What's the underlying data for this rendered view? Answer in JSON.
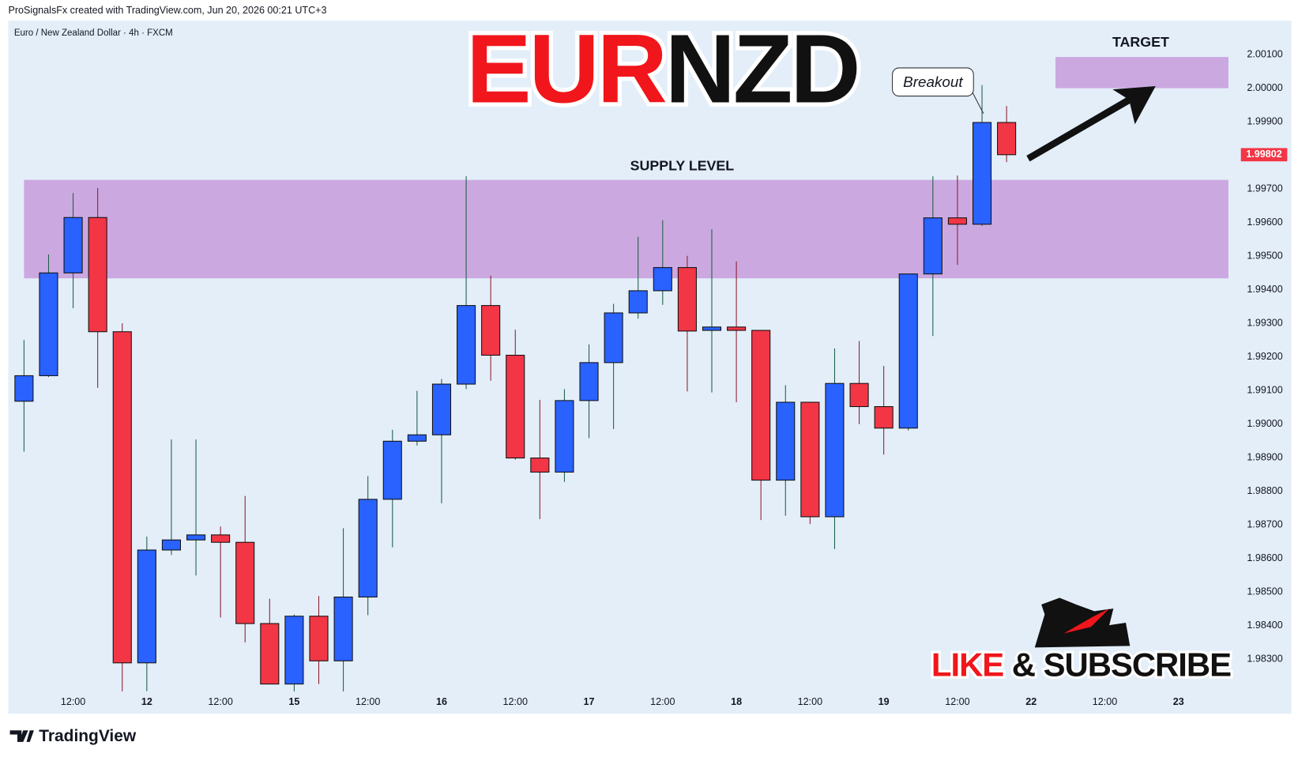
{
  "chart_data": {
    "type": "candlestick",
    "header": "ProSignalsFx created with TradingView.com, Jun 20, 2026 00:21 UTC+3",
    "symbol": "Euro / New Zealand Dollar · 4h · FXCM",
    "title_parts": [
      "EUR",
      "NZD"
    ],
    "title_colors": [
      "#f0161b",
      "#111111"
    ],
    "open": [
      1.99068,
      1.99144,
      1.9945,
      1.99615,
      1.99275,
      1.98289,
      1.98625,
      1.98655,
      1.9867,
      1.98648,
      1.98406,
      1.98226,
      1.98428,
      1.98295,
      1.98485,
      1.98776,
      1.98949,
      1.98968,
      1.99119,
      1.99353,
      1.99205,
      1.98899,
      1.98857,
      1.9907,
      1.99183,
      1.99331,
      1.99397,
      1.99466,
      1.99279,
      1.99289,
      1.99279,
      1.98833,
      1.99065,
      1.98724,
      1.99121,
      1.99052,
      1.98988,
      1.99447,
      1.99614,
      1.99595,
      1.99898
    ],
    "high": [
      1.9925,
      1.99505,
      1.99688,
      1.99703,
      1.993,
      1.98665,
      1.98954,
      1.98954,
      1.98695,
      1.98786,
      1.9848,
      1.98433,
      1.98488,
      1.9869,
      1.98845,
      1.98983,
      1.99099,
      1.99134,
      1.99738,
      1.99442,
      1.99281,
      1.99072,
      1.99104,
      1.99237,
      1.99358,
      1.99558,
      1.99607,
      1.99501,
      1.9958,
      1.99484,
      1.99279,
      1.99116,
      1.99065,
      1.99225,
      1.99247,
      1.99173,
      1.99447,
      1.99738,
      1.9974,
      2.00009,
      1.99947
    ],
    "low": [
      1.98918,
      1.9914,
      1.99345,
      1.99108,
      1.98204,
      1.98205,
      1.9861,
      1.98549,
      1.98424,
      1.9835,
      1.98226,
      1.98204,
      1.98226,
      1.98204,
      1.98431,
      1.98633,
      1.98936,
      1.98764,
      1.99104,
      1.99129,
      1.98894,
      1.98717,
      1.98828,
      1.98958,
      1.98985,
      1.99314,
      1.99355,
      1.99097,
      1.99094,
      1.99065,
      1.98714,
      1.98727,
      1.98702,
      1.98628,
      1.99,
      1.98909,
      1.98981,
      1.99262,
      1.99474,
      1.9959,
      1.9978
    ],
    "close": [
      1.99144,
      1.9945,
      1.99615,
      1.99275,
      1.98289,
      1.98625,
      1.98655,
      1.9867,
      1.98648,
      1.98406,
      1.98226,
      1.98428,
      1.98295,
      1.98485,
      1.98776,
      1.98949,
      1.98968,
      1.99119,
      1.99353,
      1.99205,
      1.98899,
      1.98857,
      1.9907,
      1.99183,
      1.99331,
      1.99397,
      1.99466,
      1.99277,
      1.99289,
      1.99279,
      1.98833,
      1.99065,
      1.98724,
      1.99121,
      1.99052,
      1.98988,
      1.99447,
      1.99614,
      1.99595,
      1.99898,
      1.99802
    ],
    "up_color": "#2962ff",
    "down_color": "#f23645",
    "last_price": 1.99802,
    "ylim": [
      1.982,
      2.002
    ],
    "yticks": [
      {
        "value": 1.983,
        "label": "1.98300"
      },
      {
        "value": 1.984,
        "label": "1.98400"
      },
      {
        "value": 1.985,
        "label": "1.98500"
      },
      {
        "value": 1.986,
        "label": "1.98600"
      },
      {
        "value": 1.987,
        "label": "1.98700"
      },
      {
        "value": 1.988,
        "label": "1.98800"
      },
      {
        "value": 1.989,
        "label": "1.98900"
      },
      {
        "value": 1.99,
        "label": "1.99000"
      },
      {
        "value": 1.991,
        "label": "1.99100"
      },
      {
        "value": 1.992,
        "label": "1.99200"
      },
      {
        "value": 1.993,
        "label": "1.99300"
      },
      {
        "value": 1.994,
        "label": "1.99400"
      },
      {
        "value": 1.995,
        "label": "1.99500"
      },
      {
        "value": 1.996,
        "label": "1.99600"
      },
      {
        "value": 1.997,
        "label": "1.99700"
      },
      {
        "value": 1.998,
        "label": "1.99800"
      },
      {
        "value": 1.999,
        "label": "1.99900"
      },
      {
        "value": 2.0,
        "label": "2.00000"
      },
      {
        "value": 2.001,
        "label": "2.00100"
      }
    ],
    "xlim": [
      -0.64,
      49.1
    ],
    "xticks": [
      {
        "value": 2,
        "label": "12:00"
      },
      {
        "value": 5,
        "label": "12"
      },
      {
        "value": 8,
        "label": "12:00"
      },
      {
        "value": 11,
        "label": "15"
      },
      {
        "value": 14,
        "label": "12:00"
      },
      {
        "value": 17,
        "label": "16"
      },
      {
        "value": 20,
        "label": "12:00"
      },
      {
        "value": 23,
        "label": "17"
      },
      {
        "value": 26,
        "label": "12:00"
      },
      {
        "value": 29,
        "label": "18"
      },
      {
        "value": 32,
        "label": "12:00"
      },
      {
        "value": 35,
        "label": "19"
      },
      {
        "value": 38,
        "label": "12:00"
      },
      {
        "value": 41,
        "label": "22"
      },
      {
        "value": 44,
        "label": "12:00"
      },
      {
        "value": 47,
        "label": "23"
      }
    ],
    "zones": [
      {
        "label": "SUPPLY LEVEL",
        "top": 1.99727,
        "bottom": 1.99434
      },
      {
        "label": "TARGET",
        "top": 2.00093,
        "bottom": 2.0
      }
    ],
    "annotation": "Breakout",
    "cta_parts": [
      "LIKE",
      "& SUBSCRIBE"
    ],
    "logo": "TradingView"
  }
}
